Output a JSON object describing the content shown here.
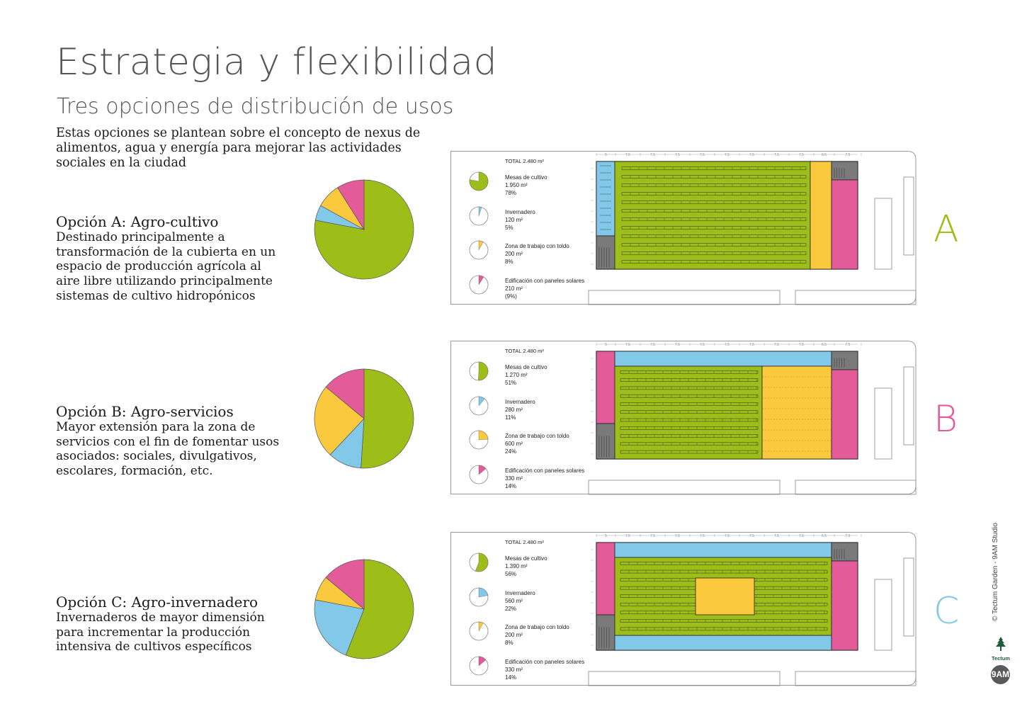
{
  "title": "Estrategia y flexibilidad",
  "subtitle": "Tres opciones de distribución de usos",
  "intro": [
    "Estas opciones se plantean sobre el concepto de nexus de",
    "alimentos, agua y energía para mejorar las actividades",
    "sociales en la ciudad"
  ],
  "colors": {
    "cultivo": "#9dbd18",
    "invernadero": "#82c8e8",
    "trabajo": "#fbc93d",
    "edificacion": "#e45b9a",
    "letterA": "#9dbd18",
    "letterB": "#e45b9a",
    "letterC": "#82c8e8"
  },
  "options": [
    {
      "heading": "Opción A: Agro-cultivo",
      "description": [
        "Destinado principalmente a",
        "transformación de la cubierta en un",
        "espacio de producción agrícola al",
        "aire libre utilizando principalmente",
        "sistemas de cultivo hidropónicos"
      ],
      "letter": "A",
      "total": "TOTAL 2.480 m²",
      "legend": [
        {
          "name": "Mesas de cultivo",
          "area": "1.950 m²",
          "pct": "78%"
        },
        {
          "name": "Invernadero",
          "area": "120 m²",
          "pct": "5%"
        },
        {
          "name": "Zona de trabajo con toldo",
          "area": "200 m²",
          "pct": "8%"
        },
        {
          "name": "Edificación con paneles solares",
          "area": "210 m²",
          "pct": "(9%)"
        }
      ],
      "chart_data": {
        "type": "pie",
        "labels": [
          "Mesas de cultivo",
          "Invernadero",
          "Zona de trabajo con toldo",
          "Edificación con paneles solares"
        ],
        "values": [
          78,
          5,
          8,
          9
        ]
      }
    },
    {
      "heading": "Opción B: Agro-servicios",
      "description": [
        "Mayor extensión para la zona de",
        "servicios con el fin de fomentar usos",
        "asociados: sociales, divulgativos,",
        "escolares, formación, etc."
      ],
      "letter": "B",
      "total": "TOTAL 2.480 m²",
      "legend": [
        {
          "name": "Mesas de cultivo",
          "area": "1.270 m²",
          "pct": "51%"
        },
        {
          "name": "Invernadero",
          "area": "280 m²",
          "pct": "11%"
        },
        {
          "name": "Zona de trabajo con toldo",
          "area": "600 m²",
          "pct": "24%"
        },
        {
          "name": "Edificación con paneles solares",
          "area": "330 m²",
          "pct": "14%"
        }
      ],
      "chart_data": {
        "type": "pie",
        "labels": [
          "Mesas de cultivo",
          "Invernadero",
          "Zona de trabajo con toldo",
          "Edificación con paneles solares"
        ],
        "values": [
          51,
          11,
          24,
          14
        ]
      }
    },
    {
      "heading": "Opción C: Agro-invernadero",
      "description": [
        "Invernaderos de mayor dimensión",
        "para incrementar la producción",
        "intensiva de cultivos específicos"
      ],
      "letter": "C",
      "total": "TOTAL 2.480 m²",
      "legend": [
        {
          "name": "Mesas de cultivo",
          "area": "1.390 m²",
          "pct": "56%"
        },
        {
          "name": "Invernadero",
          "area": "560 m²",
          "pct": "22%"
        },
        {
          "name": "Zona de trabajo con toldo",
          "area": "200 m²",
          "pct": "8%"
        },
        {
          "name": "Edificación con paneles solares",
          "area": "330 m²",
          "pct": "14%"
        }
      ],
      "chart_data": {
        "type": "pie",
        "labels": [
          "Mesas de cultivo",
          "Invernadero",
          "Zona de trabajo con toldo",
          "Edificación con paneles solares"
        ],
        "values": [
          56,
          22,
          8,
          14
        ]
      }
    }
  ],
  "dimensions": [
    "5",
    "7.5",
    "7.5",
    "7.5",
    "7.5",
    "7.5",
    "7.5",
    "7.5",
    "7.5",
    "6.5",
    "7.5"
  ],
  "credit": "© Tectum Garden - 9AM Studio",
  "logo_text": "Tectum",
  "badge_text": "9AM"
}
